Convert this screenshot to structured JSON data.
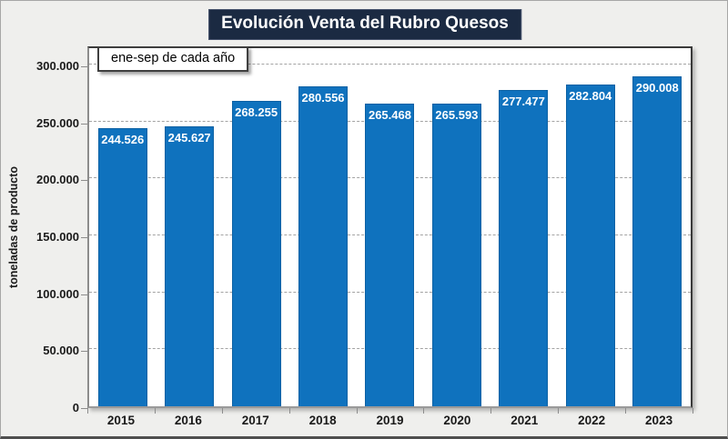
{
  "title": "Evolución Venta del Rubro Quesos",
  "annotation": "ene-sep de cada año",
  "colors": {
    "bar": "#0f72be",
    "title_background": "#1b2a42",
    "title_text": "#ffffff",
    "canvas_background": "#efefed",
    "plot_background": "#ffffff",
    "gridline": "#a3a3a3",
    "data_label_text": "#ffffff"
  },
  "chart_data": {
    "type": "bar",
    "title": "Evolución Venta del Rubro Quesos",
    "subtitle_annotation": "ene-sep de cada año",
    "categories": [
      "2015",
      "2016",
      "2017",
      "2018",
      "2019",
      "2020",
      "2021",
      "2022",
      "2023"
    ],
    "values": [
      244526,
      245627,
      268255,
      280556,
      265468,
      265593,
      277477,
      282804,
      290008
    ],
    "data_labels": [
      "244.526",
      "245.627",
      "268.255",
      "280.556",
      "265.468",
      "265.593",
      "277.477",
      "282.804",
      "290.008"
    ],
    "xlabel": "",
    "ylabel": "toneladas de producto",
    "ylim": [
      0,
      300000
    ],
    "yticks": [
      {
        "value": 0,
        "label": "0"
      },
      {
        "value": 50000,
        "label": "50.000"
      },
      {
        "value": 100000,
        "label": "100.000"
      },
      {
        "value": 150000,
        "label": "150.000"
      },
      {
        "value": 200000,
        "label": "200.000"
      },
      {
        "value": 250000,
        "label": "250.000"
      },
      {
        "value": 300000,
        "label": "300.000"
      }
    ],
    "grid": "horizontal-dashed",
    "legend": "none"
  }
}
